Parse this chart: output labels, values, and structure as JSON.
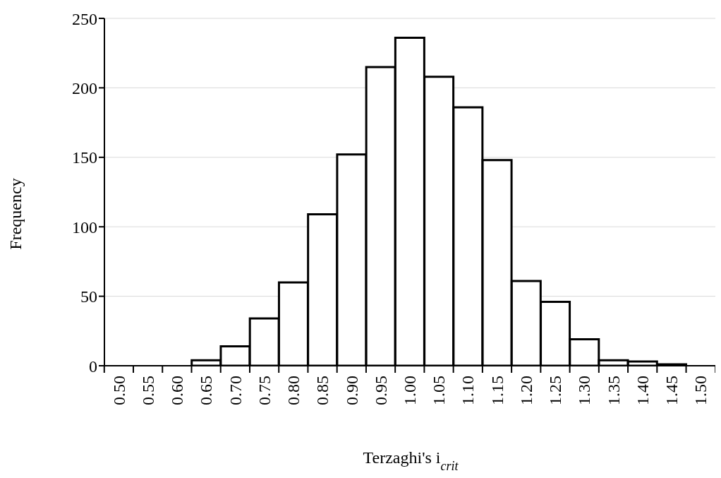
{
  "chart_data": {
    "type": "bar",
    "xlabel": "Terzaghi's i$_{crit}$",
    "ylabel": "Frequency",
    "categories": [
      "0.50",
      "0.55",
      "0.60",
      "0.65",
      "0.70",
      "0.75",
      "0.80",
      "0.85",
      "0.90",
      "0.95",
      "1.00",
      "1.05",
      "1.10",
      "1.15",
      "1.20",
      "1.25",
      "1.30",
      "1.35",
      "1.40",
      "1.45",
      "1.50"
    ],
    "values": [
      0,
      0,
      0,
      4,
      14,
      34,
      60,
      109,
      152,
      215,
      236,
      208,
      186,
      148,
      61,
      46,
      19,
      4,
      3,
      1,
      0
    ],
    "color": "#ffffff",
    "ylim": [
      0,
      250
    ],
    "yticks": [
      0,
      50,
      100,
      150,
      200,
      250
    ],
    "grid": "y",
    "legend": false
  }
}
